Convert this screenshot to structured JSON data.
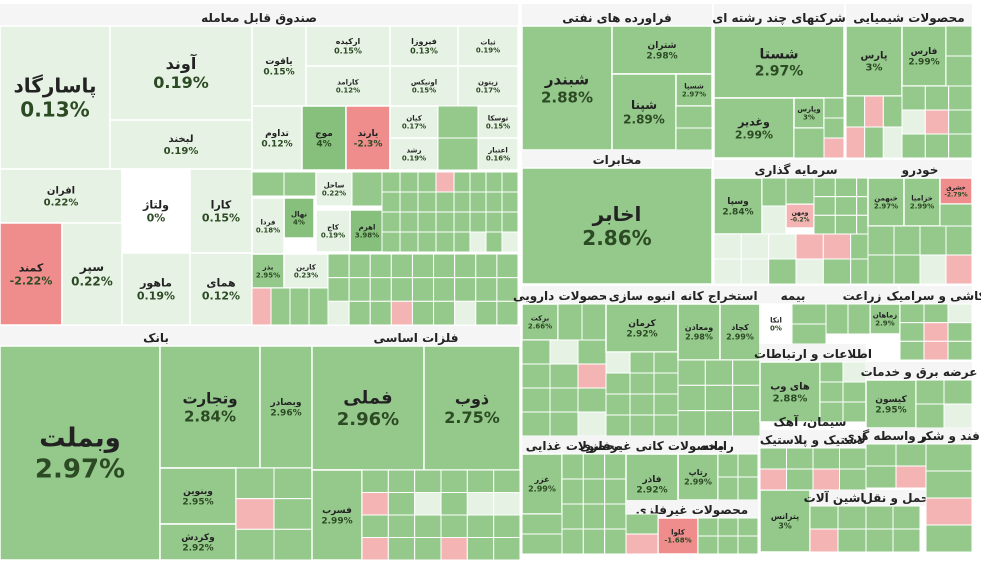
{
  "colors": {
    "background": "#ffffff",
    "sector_header": "#f5f5f5",
    "positive_light": "#e6f3e4",
    "positive_mid": "#b9dcb2",
    "positive_base": "#95c98c",
    "positive_strong": "#86c07c",
    "neutral": "#ffffff",
    "negative_light": "#f4b4b4",
    "negative": "#ef8c8c",
    "text_dark": "#222222",
    "text_pct": "#2c4a23",
    "border": "#ffffff"
  },
  "chart_data": {
    "type": "treemap",
    "title": "Market heatmap",
    "metric": "percent change",
    "sectors": [
      {
        "name": "صندوق قابل معامله",
        "tiles": [
          {
            "symbol": "پاسارگاد",
            "change": "0.13%",
            "value": 0.13
          },
          {
            "symbol": "آوند",
            "change": "0.19%",
            "value": 0.19
          },
          {
            "symbol": "لبخند",
            "change": "0.19%",
            "value": 0.19
          },
          {
            "symbol": "یاقوت",
            "change": "0.15%",
            "value": 0.15
          },
          {
            "symbol": "ارکیده",
            "change": "0.15%",
            "value": 0.15
          },
          {
            "symbol": "فیروزا",
            "change": "0.13%",
            "value": 0.13
          },
          {
            "symbol": "ثبات",
            "change": "0.19%",
            "value": 0.19
          },
          {
            "symbol": "کارامد",
            "change": "0.12%",
            "value": 0.12
          },
          {
            "symbol": "اونیکس",
            "change": "0.15%",
            "value": 0.15
          },
          {
            "symbol": "زیتون",
            "change": "0.17%",
            "value": 0.17
          },
          {
            "symbol": "کیان",
            "change": "0.17%",
            "value": 0.17
          },
          {
            "symbol": "توسکا",
            "change": "0.15%",
            "value": 0.15
          },
          {
            "symbol": "تداوم",
            "change": "0.12%",
            "value": 0.12
          },
          {
            "symbol": "موج",
            "change": "4%",
            "value": 4.0
          },
          {
            "symbol": "یارند",
            "change": "-2.3%",
            "value": -2.3
          },
          {
            "symbol": "رشد",
            "change": "0.19%",
            "value": 0.19
          },
          {
            "symbol": "اعتبار",
            "change": "0.16%",
            "value": 0.16
          },
          {
            "symbol": "افران",
            "change": "0.22%",
            "value": 0.22
          },
          {
            "symbol": "ولتاژ",
            "change": "0%",
            "value": 0
          },
          {
            "symbol": "کارا",
            "change": "0.15%",
            "value": 0.15
          },
          {
            "symbol": "کمند",
            "change": "-2.22%",
            "value": -2.22
          },
          {
            "symbol": "سپر",
            "change": "0.22%",
            "value": 0.22
          },
          {
            "symbol": "ماهور",
            "change": "0.19%",
            "value": 0.19
          },
          {
            "symbol": "همای",
            "change": "0.12%",
            "value": 0.12
          },
          {
            "symbol": "ساحل",
            "change": "0.22%",
            "value": 0.22
          },
          {
            "symbol": "نهال",
            "change": "4%",
            "value": 4.0
          },
          {
            "symbol": "اهرم",
            "change": "3.98%",
            "value": 3.98
          },
          {
            "symbol": "کاج",
            "change": "0.19%",
            "value": 0.19
          },
          {
            "symbol": "فردا",
            "change": "0.18%",
            "value": 0.18
          },
          {
            "symbol": "کارین",
            "change": "0.23%",
            "value": 0.23
          },
          {
            "symbol": "بذر",
            "change": "2.95%",
            "value": 2.95
          }
        ]
      },
      {
        "name": "فراورده های نفتی",
        "tiles": [
          {
            "symbol": "شبندر",
            "change": "2.88%",
            "value": 2.88
          },
          {
            "symbol": "شتران",
            "change": "2.98%",
            "value": 2.98
          },
          {
            "symbol": "شپنا",
            "change": "2.89%",
            "value": 2.89
          },
          {
            "symbol": "شسپا",
            "change": "2.97%",
            "value": 2.97
          }
        ]
      },
      {
        "name": "شرکتهای چند رشته ای",
        "tiles": [
          {
            "symbol": "شستا",
            "change": "2.97%",
            "value": 2.97
          },
          {
            "symbol": "وغدیر",
            "change": "2.99%",
            "value": 2.99
          },
          {
            "symbol": "وپارس",
            "change": "3%",
            "value": 3.0
          }
        ]
      },
      {
        "name": "محصولات شیمیایی",
        "tiles": [
          {
            "symbol": "پارس",
            "change": "3%",
            "value": 3.0
          },
          {
            "symbol": "فارس",
            "change": "2.99%",
            "value": 2.99
          }
        ]
      },
      {
        "name": "مخابرات",
        "tiles": [
          {
            "symbol": "اخابر",
            "change": "2.86%",
            "value": 2.86
          }
        ]
      },
      {
        "name": "سرمایه گذاری",
        "tiles": [
          {
            "symbol": "وسپا",
            "change": "2.84%",
            "value": 2.84
          },
          {
            "symbol": "ومهن",
            "change": "-0.2%",
            "value": -0.2
          }
        ]
      },
      {
        "name": "خودرو",
        "tiles": [
          {
            "symbol": "خبهمن",
            "change": "2.97%",
            "value": 2.97
          },
          {
            "symbol": "خزامیا",
            "change": "2.99%",
            "value": 2.99
          },
          {
            "symbol": "خشرق",
            "change": "-2.79%",
            "value": -2.79
          }
        ]
      },
      {
        "name": "بانک",
        "tiles": [
          {
            "symbol": "وبملت",
            "change": "2.97%",
            "value": 2.97
          },
          {
            "symbol": "وتجارت",
            "change": "2.84%",
            "value": 2.84
          },
          {
            "symbol": "وبصادر",
            "change": "2.96%",
            "value": 2.96
          },
          {
            "symbol": "وبنوین",
            "change": "2.95%",
            "value": 2.95
          },
          {
            "symbol": "وکردش",
            "change": "2.92%",
            "value": 2.92
          }
        ]
      },
      {
        "name": "فلزات اساسی",
        "tiles": [
          {
            "symbol": "فملی",
            "change": "2.96%",
            "value": 2.96
          },
          {
            "symbol": "ذوب",
            "change": "2.75%",
            "value": 2.75
          },
          {
            "symbol": "فسرب",
            "change": "2.99%",
            "value": 2.99
          }
        ]
      },
      {
        "name": "محصولات دارویی",
        "tiles": [
          {
            "symbol": "برکت",
            "change": "2.66%",
            "value": 2.66
          }
        ]
      },
      {
        "name": "انبوه سازی",
        "tiles": [
          {
            "symbol": "کرمان",
            "change": "2.92%",
            "value": 2.92
          }
        ]
      },
      {
        "name": "استخراج کانه",
        "tiles": [
          {
            "symbol": "ومعادن",
            "change": "2.98%",
            "value": 2.98
          },
          {
            "symbol": "کچاد",
            "change": "2.99%",
            "value": 2.99
          }
        ]
      },
      {
        "name": "بیمه",
        "tiles": [
          {
            "symbol": "اتکا",
            "change": "0%",
            "value": 0
          }
        ]
      },
      {
        "name": "زراعت",
        "tiles": [
          {
            "symbol": "زماهان",
            "change": "2.9%",
            "value": 2.9
          }
        ]
      },
      {
        "name": "اطلاعات و ارتباطات",
        "tiles": [
          {
            "symbol": "های وب",
            "change": "2.88%",
            "value": 2.88
          }
        ]
      },
      {
        "name": "عرضه برق و خدمات",
        "tiles": [
          {
            "symbol": "کیسون",
            "change": "2.95%",
            "value": 2.95
          }
        ]
      },
      {
        "name": "محصولات غذایی",
        "tiles": [
          {
            "symbol": "غزر",
            "change": "2.99%",
            "value": 2.99
          }
        ]
      },
      {
        "name": "محصولات کانی غیرفلزی",
        "tiles": [
          {
            "symbol": "فاذر",
            "change": "2.92%",
            "value": 2.92
          }
        ]
      },
      {
        "name": "رایانه",
        "tiles": [
          {
            "symbol": "رتاپ",
            "change": "2.99%",
            "value": 2.99
          }
        ]
      },
      {
        "name": "محصولات غیرفلزی",
        "tiles": [
          {
            "symbol": "کلوا",
            "change": "-1.68%",
            "value": -1.68
          }
        ]
      },
      {
        "name": "لاستیک و پلاستیک",
        "tiles": [
          {
            "symbol": "پترانس",
            "change": "3%",
            "value": 3.0
          }
        ]
      },
      {
        "name": "ماشین آلات",
        "tiles": []
      },
      {
        "name": "حمل و نقل",
        "tiles": []
      },
      {
        "name": "سیمان، آهک",
        "tiles": []
      },
      {
        "name": "ساير واسطه گری",
        "tiles": []
      },
      {
        "name": "فند و شکر",
        "tiles": []
      },
      {
        "name": "کاشی و سرامیک",
        "tiles": []
      }
    ]
  }
}
